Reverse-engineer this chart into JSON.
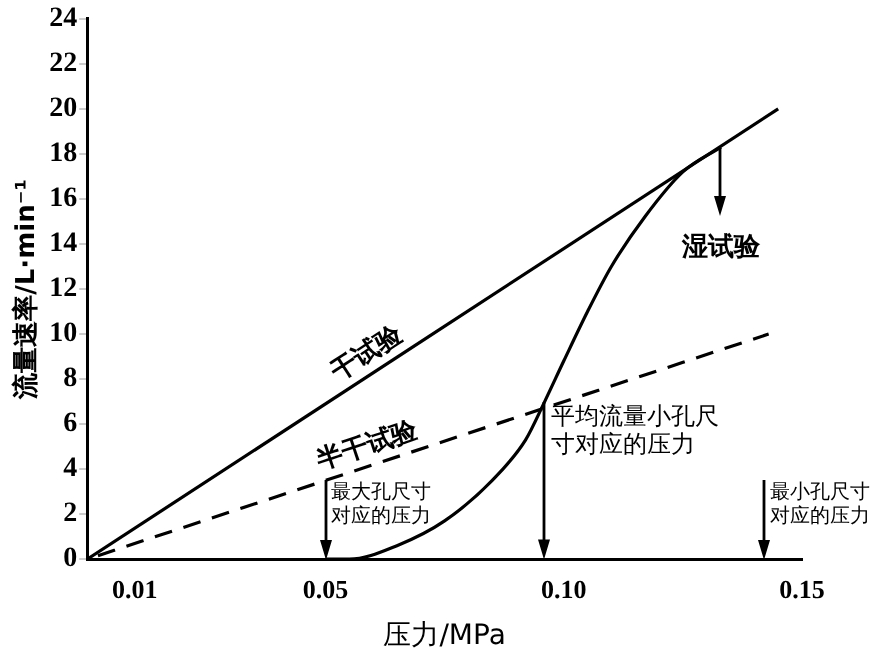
{
  "chart_data": {
    "type": "line",
    "xlabel": "压力/MPa",
    "ylabel": "流量速率/L·min⁻¹",
    "xlim": [
      0,
      0.15
    ],
    "xticks": [
      0.01,
      0.05,
      {
        "value": 0.1,
        "label": "0.10"
      },
      0.15
    ],
    "ylim": [
      0,
      24
    ],
    "yticks": [
      0,
      2,
      4,
      6,
      8,
      10,
      12,
      14,
      16,
      18,
      20,
      22,
      24
    ],
    "grid": false,
    "legend": false,
    "marker": "none",
    "series": [
      {
        "name": "干试验",
        "color": "#000000",
        "line_style": "solid",
        "x": [
          0,
          0.145
        ],
        "values": [
          0,
          20
        ]
      },
      {
        "name": "半干试验",
        "color": "#000000",
        "line_style": "dashed",
        "x": [
          0,
          0.143
        ],
        "values": [
          0,
          10
        ]
      },
      {
        "name": "湿试验",
        "color": "#000000",
        "line_style": "solid",
        "x": [
          0.05,
          0.055,
          0.065,
          0.075,
          0.085,
          0.092,
          0.096,
          0.1,
          0.105,
          0.11,
          0.117,
          0.125,
          0.133
        ],
        "values": [
          0,
          0,
          0.6,
          1.7,
          3.5,
          5.3,
          7,
          8.8,
          11,
          13,
          15.2,
          17.2,
          18.3
        ]
      }
    ],
    "annotations": [
      {
        "text": "最大孔尺寸对应的压力",
        "x": 0.05,
        "y": 0
      },
      {
        "text": "平均流量小孔尺寸对应的压力",
        "x": 0.096,
        "y": 7
      },
      "最小孔尺寸对应的压力"
    ]
  }
}
